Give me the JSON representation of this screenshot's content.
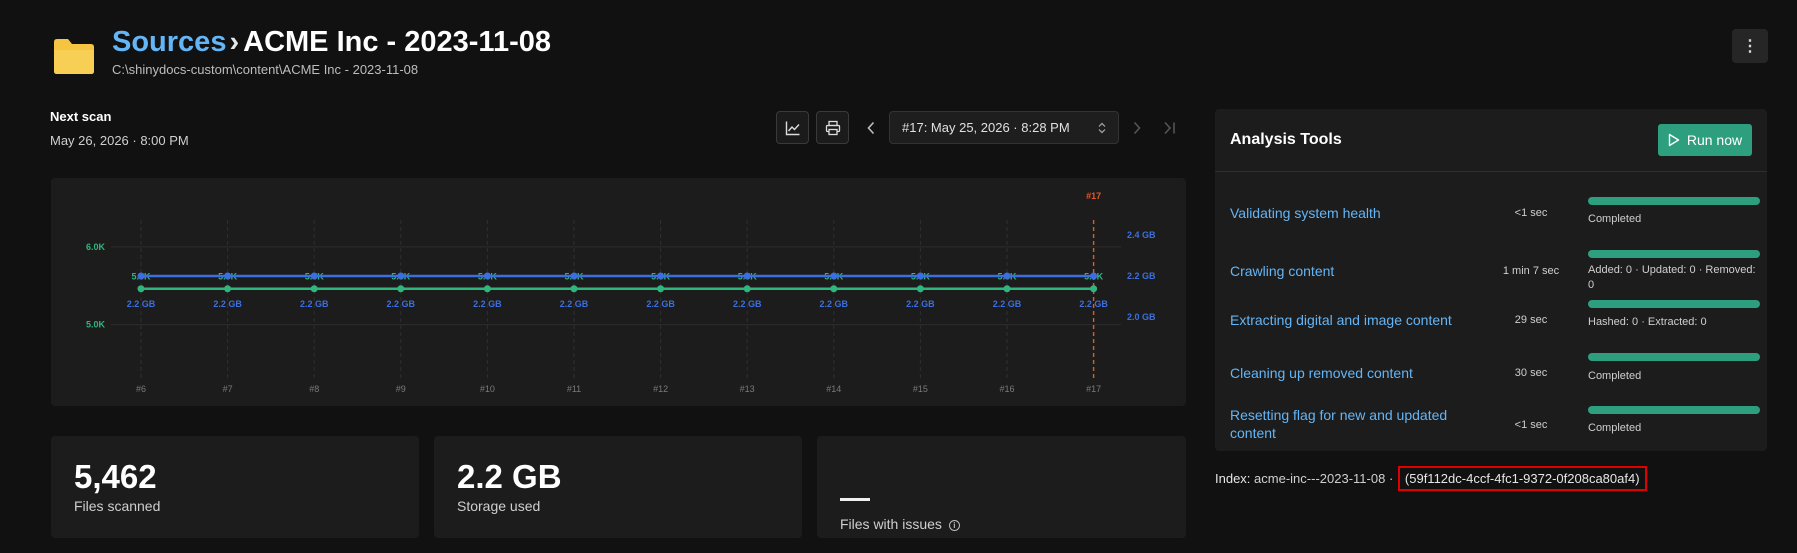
{
  "breadcrumb": {
    "parent": "Sources",
    "separator": "›",
    "current": "ACME Inc - 2023-11-08"
  },
  "path": "C:\\shinydocs-custom\\content\\ACME Inc - 2023-11-08",
  "icons": {
    "folder": "folder-icon",
    "more": "more-vertical-icon",
    "chart": "line-chart-icon",
    "print": "print-icon",
    "prev": "chevron-left-icon",
    "next": "chevron-right-icon",
    "last": "skip-last-icon",
    "select": "unfold-icon",
    "run": "play-icon",
    "info": "info-icon"
  },
  "more_glyph": "⋮",
  "next_scan": {
    "label": "Next scan",
    "value": "May 26, 2026 · 8:00 PM"
  },
  "scan_selector": {
    "value": "#17: May 25, 2026 · 8:28 PM"
  },
  "chart_data": {
    "type": "line",
    "x": [
      "#6",
      "#7",
      "#8",
      "#9",
      "#10",
      "#11",
      "#12",
      "#13",
      "#14",
      "#15",
      "#16",
      "#17"
    ],
    "series": [
      {
        "values": [
          5462,
          5462,
          5462,
          5462,
          5462,
          5462,
          5462,
          5462,
          5462,
          5462,
          5462,
          5462
        ],
        "labels": [
          "5.5K",
          "5.5K",
          "5.5K",
          "5.5K",
          "5.5K",
          "5.5K",
          "5.5K",
          "5.5K",
          "5.5K",
          "5.5K",
          "5.5K",
          "5.5K"
        ],
        "color": "#2fb67f",
        "axis": "left"
      },
      {
        "values": [
          2.2,
          2.2,
          2.2,
          2.2,
          2.2,
          2.2,
          2.2,
          2.2,
          2.2,
          2.2,
          2.2,
          2.2
        ],
        "labels": [
          "2.2 GB",
          "2.2 GB",
          "2.2 GB",
          "2.2 GB",
          "2.2 GB",
          "2.2 GB",
          "2.2 GB",
          "2.2 GB",
          "2.2 GB",
          "2.2 GB",
          "2.2 GB",
          "2.2 GB"
        ],
        "color": "#3b6fe0",
        "axis": "right"
      }
    ],
    "left_ticks": [
      {
        "value": 6000,
        "label": "6.0K"
      },
      {
        "value": 5000,
        "label": "5.0K"
      }
    ],
    "left_range": [
      4700,
      6500
    ],
    "right_ticks": [
      {
        "value": 2.4,
        "label": "2.4 GB"
      },
      {
        "value": 2.2,
        "label": "2.2 GB"
      },
      {
        "value": 2.0,
        "label": "2.0 GB"
      }
    ],
    "right_range": [
      1.85,
      2.53
    ],
    "highlight": {
      "x": "#17",
      "label": "#17",
      "color": "#e8572a"
    },
    "grid": true,
    "colors": {
      "left_axis": "#2fb67f",
      "right_axis": "#3b6fe0"
    }
  },
  "stats": [
    {
      "value": "5,462",
      "label": "Files scanned"
    },
    {
      "value": "2.2 GB",
      "label": "Storage used"
    },
    {
      "value": "",
      "label": "Files with issues"
    }
  ],
  "info_glyph": "i",
  "tools": {
    "title": "Analysis Tools",
    "run_label": "Run now",
    "rows": [
      {
        "name": "Validating system health",
        "duration": "<1 sec",
        "progress": 1.0,
        "status": "Completed"
      },
      {
        "name": "Crawling content",
        "duration": "1 min 7 sec",
        "progress": 1.0,
        "status": "Added: 0 · Updated: 0 · Removed: 0"
      },
      {
        "name": "Extracting digital and image content",
        "duration": "29 sec",
        "progress": 1.0,
        "status": "Hashed: 0 · Extracted: 0"
      },
      {
        "name": "Cleaning up removed content",
        "duration": "30 sec",
        "progress": 1.0,
        "status": "Completed"
      },
      {
        "name": "Resetting flag for new and updated content",
        "duration": "<1 sec",
        "progress": 1.0,
        "status": "Completed"
      }
    ]
  },
  "index": {
    "label": "Index:",
    "name": "acme-inc---2023-11-08",
    "separator": "·",
    "id": "(59f112dc-4ccf-4fc1-9372-0f208ca80af4)"
  },
  "colors": {
    "accent": "#2e9f7e",
    "link": "#64b5f6",
    "highlight_box": "#e00000",
    "folder": "#f5c542"
  }
}
